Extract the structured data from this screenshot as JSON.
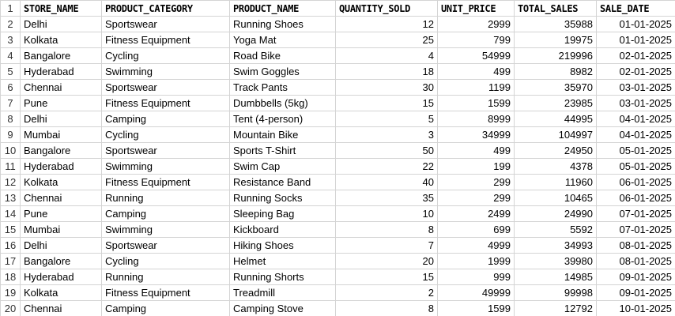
{
  "sheet": {
    "headers": [
      "STORE_NAME",
      "PRODUCT_CATEGORY",
      "PRODUCT_NAME",
      "QUANTITY_SOLD",
      "UNIT_PRICE",
      "TOTAL_SALES",
      "SALE_DATE"
    ],
    "row_numbers": [
      "1",
      "2",
      "3",
      "4",
      "5",
      "6",
      "7",
      "8",
      "9",
      "10",
      "11",
      "12",
      "13",
      "14",
      "15",
      "16",
      "17",
      "18",
      "19",
      "20"
    ],
    "rows": [
      [
        "Delhi",
        "Sportswear",
        "Running Shoes",
        "12",
        "2999",
        "35988",
        "01-01-2025"
      ],
      [
        "Kolkata",
        "Fitness Equipment",
        "Yoga Mat",
        "25",
        "799",
        "19975",
        "01-01-2025"
      ],
      [
        "Bangalore",
        "Cycling",
        "Road Bike",
        "4",
        "54999",
        "219996",
        "02-01-2025"
      ],
      [
        "Hyderabad",
        "Swimming",
        "Swim Goggles",
        "18",
        "499",
        "8982",
        "02-01-2025"
      ],
      [
        "Chennai",
        "Sportswear",
        "Track Pants",
        "30",
        "1199",
        "35970",
        "03-01-2025"
      ],
      [
        "Pune",
        "Fitness Equipment",
        "Dumbbells (5kg)",
        "15",
        "1599",
        "23985",
        "03-01-2025"
      ],
      [
        "Delhi",
        "Camping",
        "Tent (4-person)",
        "5",
        "8999",
        "44995",
        "04-01-2025"
      ],
      [
        "Mumbai",
        "Cycling",
        "Mountain Bike",
        "3",
        "34999",
        "104997",
        "04-01-2025"
      ],
      [
        "Bangalore",
        "Sportswear",
        "Sports T-Shirt",
        "50",
        "499",
        "24950",
        "05-01-2025"
      ],
      [
        "Hyderabad",
        "Swimming",
        "Swim Cap",
        "22",
        "199",
        "4378",
        "05-01-2025"
      ],
      [
        "Kolkata",
        "Fitness Equipment",
        "Resistance Band",
        "40",
        "299",
        "11960",
        "06-01-2025"
      ],
      [
        "Chennai",
        "Running",
        "Running Socks",
        "35",
        "299",
        "10465",
        "06-01-2025"
      ],
      [
        "Pune",
        "Camping",
        "Sleeping Bag",
        "10",
        "2499",
        "24990",
        "07-01-2025"
      ],
      [
        "Mumbai",
        "Swimming",
        "Kickboard",
        "8",
        "699",
        "5592",
        "07-01-2025"
      ],
      [
        "Delhi",
        "Sportswear",
        "Hiking Shoes",
        "7",
        "4999",
        "34993",
        "08-01-2025"
      ],
      [
        "Bangalore",
        "Cycling",
        "Helmet",
        "20",
        "1999",
        "39980",
        "08-01-2025"
      ],
      [
        "Hyderabad",
        "Running",
        "Running Shorts",
        "15",
        "999",
        "14985",
        "09-01-2025"
      ],
      [
        "Kolkata",
        "Fitness Equipment",
        "Treadmill",
        "2",
        "49999",
        "99998",
        "09-01-2025"
      ],
      [
        "Chennai",
        "Camping",
        "Camping Stove",
        "8",
        "1599",
        "12792",
        "10-01-2025"
      ]
    ]
  }
}
